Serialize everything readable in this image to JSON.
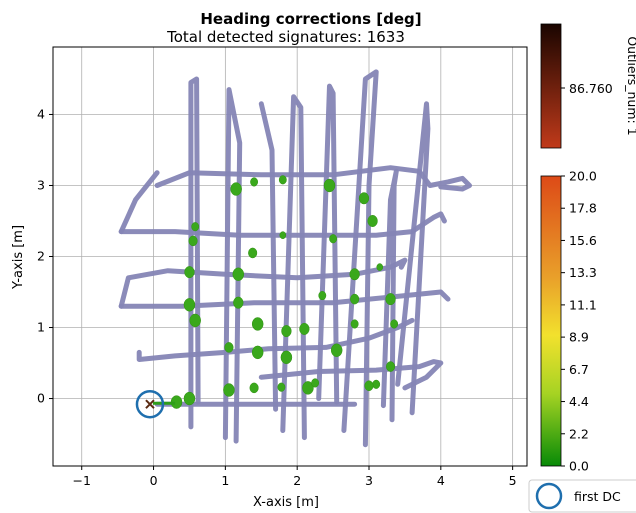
{
  "chart_data": {
    "type": "scatter",
    "title": "Heading corrections [deg]",
    "subtitle": "Total detected signatures: 1633",
    "xlabel": "X-axis [m]",
    "ylabel": "Y-axis [m]",
    "xlim": [
      -1.4,
      5.2
    ],
    "ylim": [
      -0.95,
      4.95
    ],
    "xticks": [
      -1,
      0,
      1,
      2,
      3,
      4,
      5
    ],
    "yticks": [
      0,
      1,
      2,
      3,
      4
    ],
    "grid": true,
    "trajectory": {
      "color": "#8585b5",
      "segments": [
        [
          [
            0.05,
            -0.08
          ],
          [
            2.8,
            -0.08
          ]
        ],
        [
          [
            0.52,
            -0.4
          ],
          [
            0.52,
            4.45
          ],
          [
            0.6,
            4.5
          ],
          [
            0.62,
            -0.05
          ]
        ],
        [
          [
            1.0,
            -0.55
          ],
          [
            1.05,
            4.35
          ],
          [
            1.2,
            3.6
          ],
          [
            1.15,
            -0.6
          ]
        ],
        [
          [
            1.5,
            4.15
          ],
          [
            1.65,
            3.5
          ],
          [
            1.7,
            -0.15
          ]
        ],
        [
          [
            1.8,
            -0.45
          ],
          [
            1.95,
            4.25
          ],
          [
            2.05,
            4.1
          ],
          [
            2.1,
            -0.55
          ]
        ],
        [
          [
            2.3,
            0.0
          ],
          [
            2.45,
            4.4
          ],
          [
            2.5,
            4.3
          ],
          [
            2.55,
            -0.05
          ]
        ],
        [
          [
            2.65,
            -0.45
          ],
          [
            2.95,
            4.5
          ],
          [
            3.1,
            4.6
          ],
          [
            3.0,
            3.0
          ],
          [
            2.95,
            -0.65
          ]
        ],
        [
          [
            3.2,
            -0.1
          ],
          [
            3.3,
            2.8
          ],
          [
            3.38,
            3.2
          ],
          [
            3.35,
            3.0
          ],
          [
            3.32,
            -0.3
          ]
        ],
        [
          [
            3.4,
            0.2
          ],
          [
            3.8,
            4.15
          ],
          [
            3.82,
            3.8
          ],
          [
            3.6,
            -0.2
          ]
        ],
        [
          [
            0.05,
            3.0
          ],
          [
            0.5,
            3.18
          ],
          [
            1.5,
            3.15
          ],
          [
            2.5,
            3.15
          ],
          [
            3.3,
            3.25
          ],
          [
            3.7,
            3.2
          ],
          [
            3.85,
            3.0
          ],
          [
            4.1,
            3.05
          ],
          [
            4.3,
            3.1
          ],
          [
            4.4,
            3.0
          ],
          [
            4.3,
            2.95
          ],
          [
            4.0,
            2.98
          ]
        ],
        [
          [
            -0.45,
            2.35
          ],
          [
            -0.25,
            2.8
          ],
          [
            0.05,
            3.18
          ]
        ],
        [
          [
            -0.45,
            2.35
          ],
          [
            0.3,
            2.35
          ],
          [
            1.2,
            2.3
          ],
          [
            2.2,
            2.3
          ],
          [
            3.1,
            2.3
          ],
          [
            3.6,
            2.35
          ],
          [
            3.9,
            2.55
          ],
          [
            4.0,
            2.6
          ],
          [
            4.05,
            2.5
          ]
        ],
        [
          [
            -0.45,
            1.3
          ],
          [
            -0.35,
            1.7
          ],
          [
            0.2,
            1.8
          ],
          [
            1.0,
            1.75
          ],
          [
            2.0,
            1.7
          ],
          [
            2.8,
            1.75
          ],
          [
            3.3,
            1.85
          ],
          [
            3.5,
            1.95
          ],
          [
            3.45,
            1.85
          ]
        ],
        [
          [
            -0.45,
            1.3
          ],
          [
            0.4,
            1.3
          ],
          [
            1.4,
            1.35
          ],
          [
            2.5,
            1.35
          ],
          [
            3.5,
            1.45
          ],
          [
            4.0,
            1.5
          ],
          [
            4.1,
            1.4
          ]
        ],
        [
          [
            -0.2,
            0.65
          ],
          [
            -0.2,
            0.55
          ],
          [
            0.3,
            0.6
          ],
          [
            1.0,
            0.65
          ],
          [
            1.6,
            0.7
          ],
          [
            2.4,
            0.72
          ],
          [
            3.0,
            0.85
          ],
          [
            3.4,
            1.0
          ],
          [
            3.6,
            1.1
          ]
        ],
        [
          [
            1.5,
            0.3
          ],
          [
            2.3,
            0.38
          ],
          [
            3.1,
            0.4
          ],
          [
            3.7,
            0.45
          ],
          [
            3.9,
            0.52
          ],
          [
            4.0,
            0.5
          ],
          [
            3.8,
            0.3
          ],
          [
            3.5,
            0.15
          ]
        ]
      ]
    },
    "signatures": [
      [
        0.32,
        -0.05,
        0.09
      ],
      [
        0.5,
        0.0,
        0.09
      ],
      [
        1.05,
        0.12,
        0.09
      ],
      [
        1.4,
        0.15,
        0.07
      ],
      [
        1.78,
        0.16,
        0.06
      ],
      [
        2.15,
        0.15,
        0.09
      ],
      [
        2.25,
        0.22,
        0.06
      ],
      [
        1.15,
        2.95,
        0.09
      ],
      [
        1.4,
        3.05,
        0.06
      ],
      [
        1.8,
        3.08,
        0.06
      ],
      [
        2.45,
        3.0,
        0.09
      ],
      [
        2.93,
        2.82,
        0.08
      ],
      [
        3.05,
        2.5,
        0.08
      ],
      [
        0.55,
        2.22,
        0.07
      ],
      [
        0.58,
        2.42,
        0.06
      ],
      [
        1.38,
        2.05,
        0.07
      ],
      [
        1.8,
        2.3,
        0.05
      ],
      [
        2.5,
        2.25,
        0.06
      ],
      [
        0.5,
        1.78,
        0.08
      ],
      [
        1.18,
        1.75,
        0.09
      ],
      [
        2.8,
        1.75,
        0.08
      ],
      [
        3.15,
        1.85,
        0.05
      ],
      [
        0.5,
        1.32,
        0.09
      ],
      [
        1.18,
        1.35,
        0.08
      ],
      [
        2.35,
        1.45,
        0.06
      ],
      [
        2.8,
        1.4,
        0.07
      ],
      [
        3.3,
        1.4,
        0.08
      ],
      [
        0.58,
        1.1,
        0.09
      ],
      [
        1.45,
        1.05,
        0.09
      ],
      [
        1.85,
        0.95,
        0.08
      ],
      [
        2.1,
        0.98,
        0.08
      ],
      [
        2.8,
        1.05,
        0.06
      ],
      [
        3.35,
        1.05,
        0.06
      ],
      [
        1.05,
        0.72,
        0.07
      ],
      [
        1.45,
        0.65,
        0.09
      ],
      [
        1.85,
        0.58,
        0.09
      ],
      [
        2.55,
        0.68,
        0.09
      ],
      [
        3.1,
        0.2,
        0.06
      ],
      [
        3.3,
        0.45,
        0.07
      ],
      [
        3.0,
        0.18,
        0.07
      ]
    ],
    "marker_x": [
      -0.05,
      -0.08
    ],
    "first_dc": [
      -0.05,
      -0.08
    ],
    "colorbar_outliers": {
      "label": "Outliers_num: 1",
      "ticks": [
        "86.760"
      ],
      "colors": [
        "#1a0500",
        "#c03a1a"
      ]
    },
    "colorbar_main": {
      "ticks": [
        "20.0",
        "17.8",
        "15.6",
        "13.3",
        "11.1",
        "8.9",
        "6.7",
        "4.4",
        "2.2",
        "0.0"
      ],
      "colors": [
        "#dd4a17",
        "#e9a02a",
        "#f2e12d",
        "#a6d323",
        "#078a07"
      ]
    },
    "legend": {
      "label": "first DC",
      "placement": "bottom-right"
    }
  }
}
